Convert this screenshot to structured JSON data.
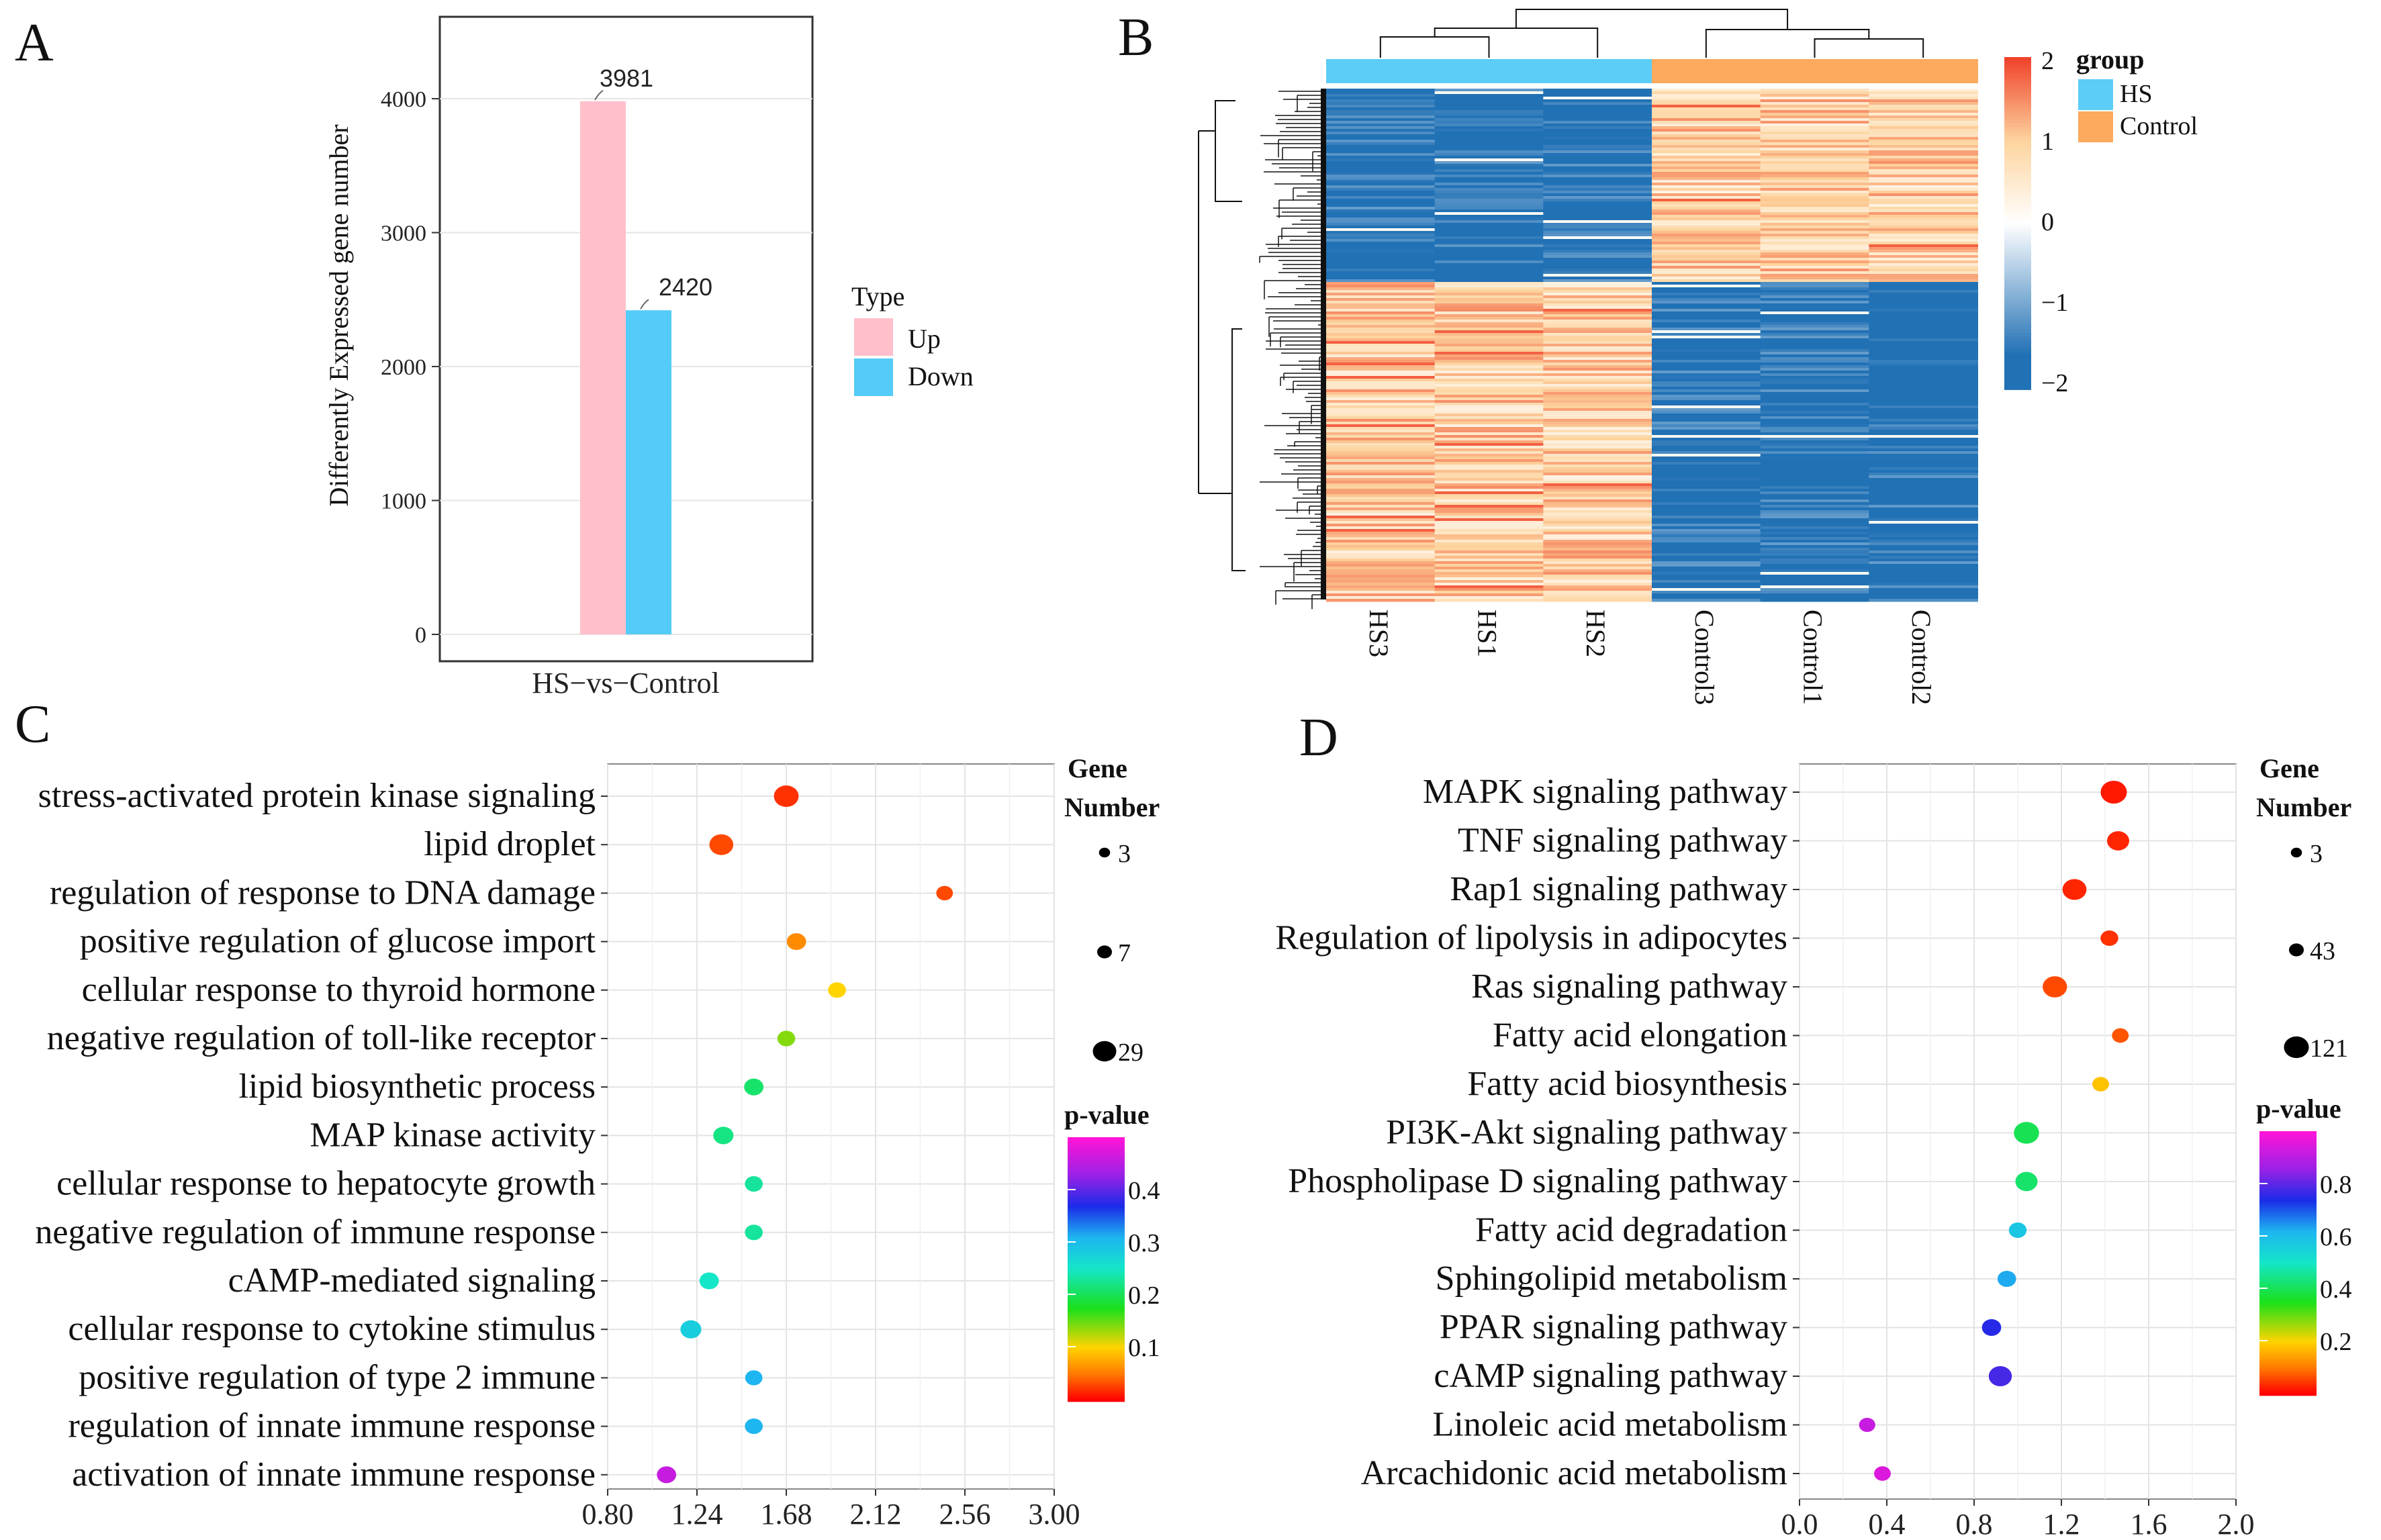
{
  "panels": {
    "A": {
      "letter": "A"
    },
    "B": {
      "letter": "B"
    },
    "C": {
      "letter": "C"
    },
    "D": {
      "letter": "D"
    }
  },
  "chart_data": [
    {
      "id": "A",
      "type": "bar",
      "categories": [
        "HS−vs−Control"
      ],
      "series": [
        {
          "name": "Up",
          "values": [
            3981
          ],
          "color": "#FFC0CB"
        },
        {
          "name": "Down",
          "values": [
            2420
          ],
          "color": "#55CCF7"
        }
      ],
      "data_labels": [
        "3981",
        "2420"
      ],
      "ylabel": "Differently Expressed gene number",
      "ylim": [
        0,
        4600
      ],
      "yticks": [
        0,
        1000,
        2000,
        3000,
        4000
      ],
      "legend_title": "Type",
      "legend_position": "right"
    },
    {
      "id": "B",
      "type": "heatmap",
      "columns": [
        "HS3",
        "HS1",
        "HS2",
        "Control3",
        "Control1",
        "Control2"
      ],
      "groups": [
        "HS",
        "HS",
        "HS",
        "Control",
        "Control",
        "Control"
      ],
      "group_legend_title": "group",
      "group_legend": [
        {
          "name": "HS",
          "color": "#5CCDF7"
        },
        {
          "name": "Control",
          "color": "#FDA95E"
        }
      ],
      "colorbar_ticks": [
        "2",
        "1",
        "0",
        "−1",
        "−2"
      ],
      "colorbar_range": [
        -2,
        2
      ],
      "colors": {
        "low": "#2171B5",
        "mid": "#FFFFFF",
        "high": "#F0432C",
        "warm": "#FDD49E"
      }
    },
    {
      "id": "C",
      "type": "scatter",
      "terms": [
        "stress-activated protein kinase signaling",
        "lipid droplet",
        "regulation of response to DNA damage",
        "positive regulation of glucose import",
        "cellular response to thyroid hormone",
        "negative regulation of toll-like receptor",
        "lipid biosynthetic process",
        "MAP kinase activity",
        "cellular response to hepatocyte growth",
        "negative regulation of immune response",
        "cAMP-mediated signaling",
        "cellular response to cytokine stimulus",
        "positive regulation of type 2 immune",
        "regulation of innate immune response",
        "activation of innate immune response"
      ],
      "x": [
        1.68,
        1.36,
        2.46,
        1.73,
        1.93,
        1.68,
        1.52,
        1.37,
        1.52,
        1.52,
        1.3,
        1.21,
        1.52,
        1.52,
        1.09
      ],
      "gene_number": [
        25,
        22,
        3,
        8,
        5,
        5,
        8,
        10,
        5,
        5,
        8,
        12,
        4,
        5,
        8
      ],
      "p_value": [
        0.02,
        0.03,
        0.03,
        0.06,
        0.1,
        0.14,
        0.21,
        0.22,
        0.23,
        0.23,
        0.25,
        0.28,
        0.31,
        0.31,
        0.46
      ],
      "xlim": [
        0.8,
        3.0
      ],
      "xticks": [
        "0.80",
        "1.24",
        "1.68",
        "2.12",
        "2.56",
        "3.00"
      ],
      "size_legend_title": [
        "Gene",
        "Number"
      ],
      "size_legend": [
        "3",
        "7",
        "29"
      ],
      "color_legend_title": "p-value",
      "color_ticks": [
        "0.4",
        "0.3",
        "0.2",
        "0.1"
      ],
      "prange": [
        0.0,
        0.5
      ]
    },
    {
      "id": "D",
      "type": "scatter",
      "terms": [
        "MAPK signaling pathway",
        "TNF signaling pathway",
        "Rap1 signaling pathway",
        "Regulation of lipolysis in adipocytes",
        "Ras signaling pathway",
        "Fatty acid elongation",
        "Fatty acid biosynthesis",
        "PI3K-Akt signaling pathway",
        "Phospholipase D signaling pathway",
        "Fatty acid degradation",
        "Sphingolipid metabolism",
        "PPAR signaling pathway",
        "cAMP signaling pathway",
        "Linoleic acid metabolism",
        "Arcachidonic acid metabolism"
      ],
      "x": [
        1.44,
        1.46,
        1.26,
        1.42,
        1.17,
        1.47,
        1.38,
        1.04,
        1.04,
        1.0,
        0.95,
        0.88,
        0.92,
        0.31,
        0.38
      ],
      "gene_number": [
        100,
        50,
        70,
        15,
        75,
        10,
        10,
        85,
        50,
        15,
        20,
        25,
        60,
        8,
        10
      ],
      "p_value": [
        0.02,
        0.03,
        0.03,
        0.04,
        0.06,
        0.07,
        0.18,
        0.4,
        0.42,
        0.58,
        0.63,
        0.75,
        0.78,
        0.92,
        0.95
      ],
      "xlim": [
        0.0,
        2.0
      ],
      "xticks": [
        "0.0",
        "0.4",
        "0.8",
        "1.2",
        "1.6",
        "2.0"
      ],
      "size_legend_title": [
        "Gene",
        "Number"
      ],
      "size_legend": [
        "3",
        "43",
        "121"
      ],
      "color_legend_title": "p-value",
      "color_ticks": [
        "0.8",
        "0.6",
        "0.4",
        "0.2"
      ],
      "prange": [
        0.0,
        1.0
      ]
    }
  ]
}
